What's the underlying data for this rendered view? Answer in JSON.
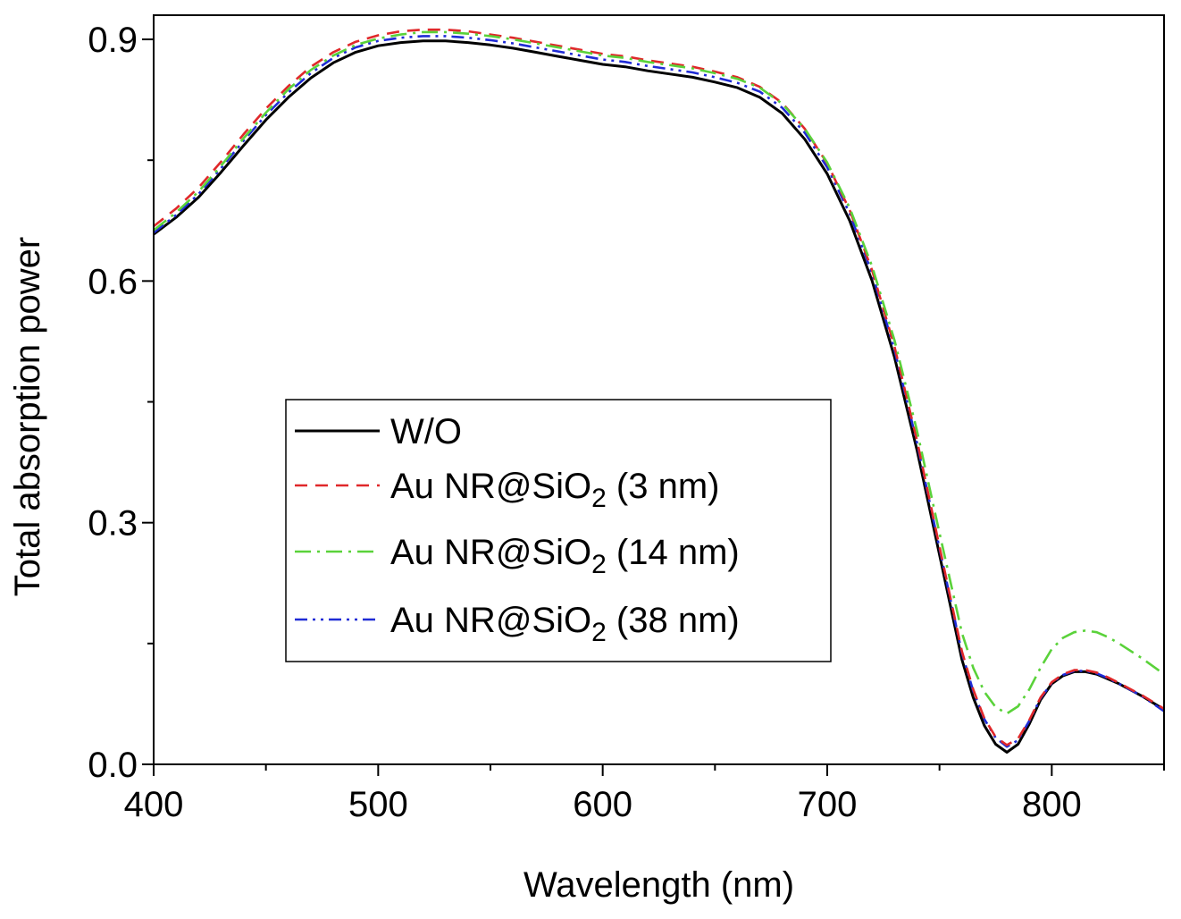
{
  "chart_data": {
    "type": "line",
    "title": "",
    "xlabel": "Wavelength (nm)",
    "ylabel": "Total absorption power",
    "xlim": [
      400,
      850
    ],
    "ylim": [
      0.0,
      0.93
    ],
    "x_ticks": [
      400,
      500,
      600,
      700,
      800
    ],
    "y_ticks": [
      0.0,
      0.3,
      0.6,
      0.9
    ],
    "y_tick_labels": [
      "0.0",
      "0.3",
      "0.6",
      "0.9"
    ],
    "grid": false,
    "legend_position": "center-left",
    "x": [
      400,
      410,
      420,
      430,
      440,
      450,
      460,
      470,
      480,
      490,
      500,
      510,
      520,
      530,
      540,
      550,
      560,
      570,
      580,
      590,
      600,
      610,
      620,
      630,
      640,
      650,
      660,
      670,
      680,
      690,
      700,
      710,
      720,
      730,
      740,
      750,
      760,
      765,
      770,
      775,
      780,
      785,
      790,
      795,
      800,
      805,
      810,
      815,
      820,
      825,
      830,
      840,
      850
    ],
    "series": [
      {
        "name": "W/O",
        "color": "#000000",
        "dash": "solid",
        "values": [
          0.658,
          0.679,
          0.704,
          0.735,
          0.768,
          0.8,
          0.828,
          0.852,
          0.871,
          0.884,
          0.892,
          0.896,
          0.898,
          0.898,
          0.896,
          0.893,
          0.889,
          0.884,
          0.879,
          0.874,
          0.869,
          0.866,
          0.861,
          0.857,
          0.853,
          0.847,
          0.84,
          0.828,
          0.808,
          0.776,
          0.733,
          0.675,
          0.6,
          0.505,
          0.39,
          0.26,
          0.13,
          0.083,
          0.048,
          0.025,
          0.015,
          0.025,
          0.05,
          0.08,
          0.1,
          0.11,
          0.115,
          0.115,
          0.112,
          0.106,
          0.1,
          0.085,
          0.068
        ]
      },
      {
        "name": "Au NR@SiO2 (3 nm)",
        "color": "#e0282a",
        "dash": "dashed",
        "values": [
          0.668,
          0.69,
          0.716,
          0.748,
          0.782,
          0.814,
          0.842,
          0.866,
          0.884,
          0.897,
          0.905,
          0.91,
          0.912,
          0.912,
          0.91,
          0.906,
          0.902,
          0.897,
          0.892,
          0.887,
          0.882,
          0.879,
          0.874,
          0.87,
          0.866,
          0.86,
          0.853,
          0.841,
          0.821,
          0.789,
          0.746,
          0.688,
          0.613,
          0.518,
          0.402,
          0.27,
          0.14,
          0.093,
          0.057,
          0.034,
          0.024,
          0.032,
          0.055,
          0.083,
          0.102,
          0.112,
          0.117,
          0.117,
          0.114,
          0.108,
          0.101,
          0.086,
          0.069
        ]
      },
      {
        "name": "Au NR@SiO2 (14 nm)",
        "color": "#5ad23a",
        "dash": "dashdot",
        "values": [
          0.663,
          0.685,
          0.711,
          0.743,
          0.777,
          0.809,
          0.838,
          0.862,
          0.88,
          0.893,
          0.901,
          0.906,
          0.909,
          0.909,
          0.907,
          0.904,
          0.9,
          0.895,
          0.89,
          0.885,
          0.88,
          0.877,
          0.872,
          0.868,
          0.864,
          0.858,
          0.851,
          0.84,
          0.82,
          0.789,
          0.747,
          0.691,
          0.618,
          0.526,
          0.414,
          0.287,
          0.163,
          0.12,
          0.09,
          0.071,
          0.063,
          0.072,
          0.093,
          0.12,
          0.143,
          0.157,
          0.164,
          0.166,
          0.164,
          0.158,
          0.15,
          0.132,
          0.112
        ]
      },
      {
        "name": "Au NR@SiO2 (38 nm)",
        "color": "#1f2bd6",
        "dash": "dashdotdot",
        "values": [
          0.66,
          0.682,
          0.708,
          0.74,
          0.774,
          0.806,
          0.834,
          0.858,
          0.877,
          0.89,
          0.898,
          0.902,
          0.904,
          0.904,
          0.902,
          0.899,
          0.895,
          0.89,
          0.885,
          0.88,
          0.875,
          0.872,
          0.867,
          0.863,
          0.859,
          0.853,
          0.846,
          0.835,
          0.815,
          0.784,
          0.741,
          0.684,
          0.609,
          0.514,
          0.399,
          0.268,
          0.138,
          0.091,
          0.056,
          0.033,
          0.022,
          0.03,
          0.054,
          0.082,
          0.101,
          0.111,
          0.116,
          0.116,
          0.113,
          0.107,
          0.1,
          0.085,
          0.066
        ]
      }
    ],
    "legend": {
      "entries": [
        {
          "prefix": "W/O",
          "sub": "",
          "suffix": ""
        },
        {
          "prefix": "Au NR@SiO",
          "sub": "2",
          "suffix": " (3 nm)"
        },
        {
          "prefix": "Au NR@SiO",
          "sub": "2",
          "suffix": " (14 nm)"
        },
        {
          "prefix": "Au NR@SiO",
          "sub": "2",
          "suffix": " (38 nm)"
        }
      ]
    }
  }
}
